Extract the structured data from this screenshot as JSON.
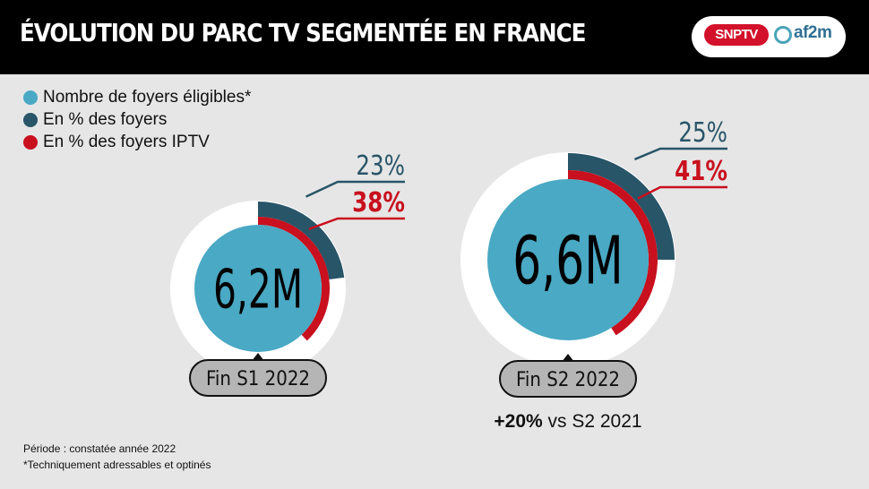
{
  "header": {
    "title": "ÉVOLUTION DU PARC TV SEGMENTÉE EN FRANCE",
    "logo_snp": "SNPTV",
    "logo_af2m": "af2m"
  },
  "colors": {
    "households": "#4aa9c4",
    "pct_households": "#285568",
    "pct_iptv": "#c8101e",
    "ring_bg": "#ffffff"
  },
  "legend": [
    {
      "label": "Nombre de foyers éligibles*",
      "color": "#4aa9c4"
    },
    {
      "label": "En % des foyers",
      "color": "#285568"
    },
    {
      "label": "En % des foyers IPTV",
      "color": "#c8101e"
    }
  ],
  "chart_data": {
    "type": "radial-bar",
    "categories": [
      "Fin S1 2022",
      "Fin S2 2022"
    ],
    "series": [
      {
        "name": "Nombre de foyers éligibles*",
        "values": [
          6.2,
          6.6
        ],
        "labels": [
          "6,2M",
          "6,6M"
        ]
      },
      {
        "name": "En % des foyers",
        "values": [
          23,
          25
        ],
        "labels": [
          "23%",
          "25%"
        ]
      },
      {
        "name": "En % des foyers IPTV",
        "values": [
          38,
          41
        ],
        "labels": [
          "38%",
          "41%"
        ]
      }
    ],
    "annotations": [
      {
        "category": "Fin S2 2022",
        "text_bold": "+20%",
        "text": " vs S2 2021"
      }
    ]
  },
  "footnotes": {
    "period": "Période : constatée année 2022",
    "note": "*Techniquement adressables et optinés"
  }
}
